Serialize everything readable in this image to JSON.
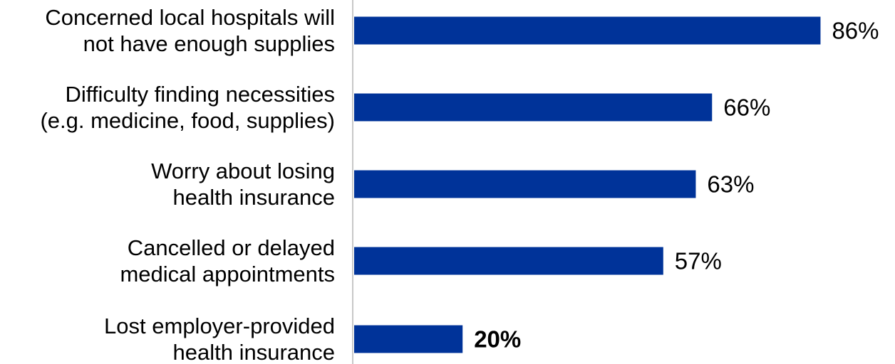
{
  "chart_data": {
    "type": "bar",
    "orientation": "horizontal",
    "categories": [
      [
        "Concerned local hospitals will",
        "not have enough supplies"
      ],
      [
        "Difficulty finding necessities",
        "(e.g. medicine, food, supplies)"
      ],
      [
        "Worry about losing",
        "health insurance"
      ],
      [
        "Cancelled or delayed",
        "medical appointments"
      ],
      [
        "Lost employer-provided",
        "health insurance"
      ]
    ],
    "values": [
      86,
      66,
      63,
      57,
      20
    ],
    "value_labels": [
      "86%",
      "66%",
      "63%",
      "57%",
      "20%"
    ],
    "bold_value_labels": [
      false,
      false,
      false,
      false,
      true
    ],
    "bar_color": "#003399",
    "axis_color": "#c8c8c8",
    "xlim": [
      0,
      100
    ],
    "title": "",
    "xlabel": "",
    "ylabel": "",
    "grid": false,
    "legend": "none"
  }
}
